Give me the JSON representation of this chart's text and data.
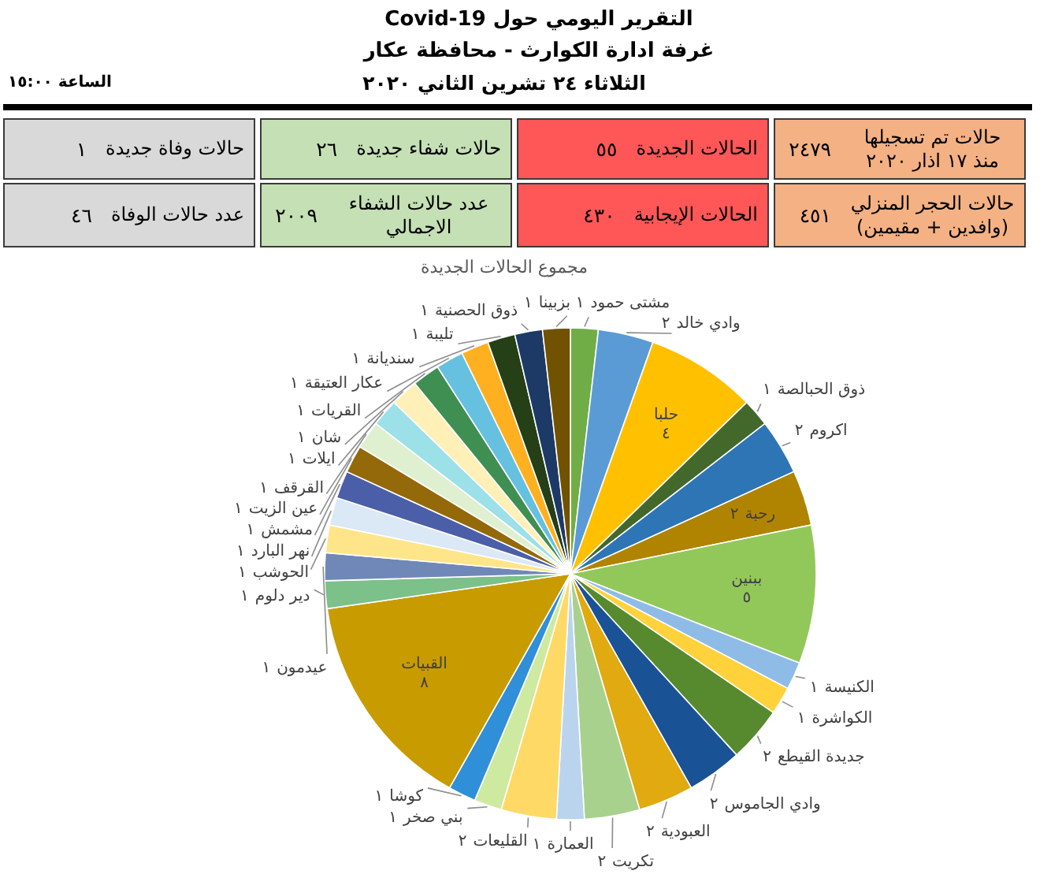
{
  "chart_data": [
    {
      "type": "other",
      "title": "التقرير اليومي حول Covid-19",
      "subtitle": "غرفة ادارة الكوارث - محافظة عكار",
      "annotations": [
        "الثلاثاء ٢٤ تشرين الثاني ٢٠٢٠",
        "الساعة ١٥:٠٠"
      ],
      "categories": [
        "حالات تم تسجيلها منذ ١٧ اذار ٢٠٢٠",
        "الحالات الجديدة",
        "حالات شفاء جديدة",
        "حالات وفاة جديدة",
        "حالات الحجر المنزلي (وافدين + مقيمين)",
        "الحالات الإيجابية",
        "عدد حالات الشفاء الاجمالي",
        "عدد حالات الوفاة"
      ],
      "value_labels": [
        "٢٤٧٩",
        "٥٥",
        "٢٦",
        "١",
        "٤٥١",
        "٤٣٠",
        "٢٠٠٩",
        "٤٦"
      ],
      "colors": [
        "#f4b183",
        "#ff5757",
        "#c5e0b4",
        "#d9d9d9",
        "#f4b183",
        "#ff5757",
        "#c5e0b4",
        "#d9d9d9"
      ]
    },
    {
      "type": "pie",
      "title": "مجموع الحالات الجديدة",
      "categories": [
        "مشتى حمود",
        "وادي خالد",
        "حلبا",
        "ذوق الحبالصة",
        "اكروم",
        "رحبة",
        "ببنين",
        "الكنيسة",
        "الكواشرة",
        "جديدة القيطع",
        "وادي الجاموس",
        "العبودية",
        "تكريت",
        "العمارة",
        "القليعات",
        "بني صخر",
        "كوشا",
        "القبيات",
        "دير دلوم",
        "عيدمون",
        "الحوشب",
        "نهر البارد",
        "مشمش",
        "عين الزيت",
        "القرقف",
        "ايلات",
        "شان",
        "القريات",
        "عكار العتيقة",
        "سنديانة",
        "تليبة",
        "ذوق الحصنية",
        "بزبينا"
      ],
      "values": [
        1,
        2,
        4,
        1,
        2,
        2,
        5,
        1,
        1,
        2,
        2,
        2,
        2,
        1,
        2,
        1,
        1,
        8,
        1,
        1,
        1,
        1,
        1,
        1,
        1,
        1,
        1,
        1,
        1,
        1,
        1,
        1,
        1
      ],
      "value_labels": [
        "١",
        "٢",
        "٤",
        "١",
        "٢",
        "٢",
        "٥",
        "١",
        "١",
        "٢",
        "٢",
        "٢",
        "٢",
        "١",
        "٢",
        "١",
        "١",
        "٨",
        "١",
        "١",
        "١",
        "١",
        "١",
        "١",
        "١",
        "١",
        "١",
        "١",
        "١",
        "١",
        "١",
        "١",
        "١"
      ],
      "colors": [
        "#70ad47",
        "#5b9bd5",
        "#ffc000",
        "#43682b",
        "#2e75b6",
        "#b08400",
        "#92c85a",
        "#8fbce6",
        "#ffd23c",
        "#578a2e",
        "#1a5296",
        "#e0aa10",
        "#a9d18e",
        "#bad4ee",
        "#ffd966",
        "#cdeaa0",
        "#2f8fd8",
        "#c89b00",
        "#7cc08a",
        "#7088b8",
        "#ffe58a",
        "#dbe8f5",
        "#4b5fa8",
        "#94690a",
        "#dff0d0",
        "#9ce0e8",
        "#fff0b8",
        "#3f8f52",
        "#66c0e0",
        "#ffb020",
        "#253f17",
        "#1d3a66",
        "#705200"
      ]
    }
  ]
}
